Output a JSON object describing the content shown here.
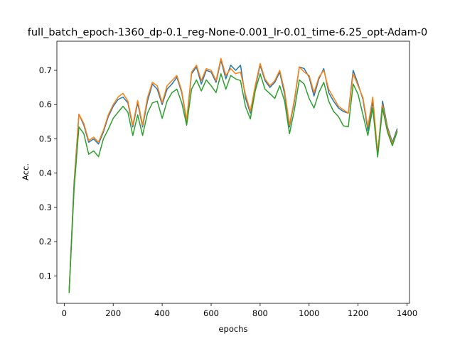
{
  "chart_data": {
    "type": "line",
    "title": "full_batch_epoch-1360_dp-0.1_reg-None-0.001_lr-0.01_time-6.25_opt-Adam-0",
    "xlabel": "epochs",
    "ylabel": "Acc.",
    "xlim": [
      -30,
      1410
    ],
    "ylim": [
      0.02,
      0.785
    ],
    "xticks": [
      0,
      200,
      400,
      600,
      800,
      1000,
      1200,
      1400
    ],
    "yticks": [
      0.1,
      0.2,
      0.3,
      0.4,
      0.5,
      0.6,
      0.7
    ],
    "grid": false,
    "legend": "none",
    "x": [
      20,
      40,
      60,
      80,
      100,
      120,
      140,
      160,
      180,
      200,
      220,
      240,
      260,
      280,
      300,
      320,
      340,
      360,
      380,
      400,
      420,
      440,
      460,
      480,
      500,
      520,
      540,
      560,
      580,
      600,
      620,
      640,
      660,
      680,
      700,
      720,
      740,
      760,
      780,
      800,
      820,
      840,
      860,
      880,
      900,
      920,
      940,
      960,
      980,
      1000,
      1020,
      1040,
      1060,
      1080,
      1100,
      1120,
      1140,
      1160,
      1180,
      1200,
      1220,
      1240,
      1260,
      1280,
      1300,
      1320,
      1340,
      1360
    ],
    "series": [
      {
        "color": "#1f77b4",
        "values": [
          0.055,
          0.37,
          0.572,
          0.54,
          0.49,
          0.5,
          0.485,
          0.52,
          0.565,
          0.595,
          0.615,
          0.622,
          0.605,
          0.535,
          0.605,
          0.535,
          0.61,
          0.66,
          0.645,
          0.6,
          0.645,
          0.66,
          0.68,
          0.635,
          0.55,
          0.69,
          0.71,
          0.66,
          0.7,
          0.695,
          0.665,
          0.73,
          0.675,
          0.715,
          0.7,
          0.715,
          0.62,
          0.575,
          0.65,
          0.715,
          0.67,
          0.65,
          0.665,
          0.695,
          0.63,
          0.535,
          0.61,
          0.71,
          0.705,
          0.68,
          0.625,
          0.675,
          0.705,
          0.635,
          0.61,
          0.59,
          0.58,
          0.575,
          0.7,
          0.66,
          0.615,
          0.525,
          0.61,
          0.455,
          0.61,
          0.535,
          0.49,
          0.53
        ]
      },
      {
        "color": "#ff7f0e",
        "values": [
          0.055,
          0.36,
          0.572,
          0.545,
          0.495,
          0.505,
          0.49,
          0.525,
          0.57,
          0.6,
          0.622,
          0.633,
          0.61,
          0.54,
          0.612,
          0.54,
          0.62,
          0.665,
          0.655,
          0.605,
          0.655,
          0.67,
          0.685,
          0.64,
          0.555,
          0.695,
          0.715,
          0.67,
          0.705,
          0.7,
          0.67,
          0.735,
          0.685,
          0.705,
          0.69,
          0.695,
          0.63,
          0.58,
          0.655,
          0.72,
          0.675,
          0.655,
          0.67,
          0.7,
          0.64,
          0.54,
          0.615,
          0.71,
          0.695,
          0.685,
          0.635,
          0.68,
          0.7,
          0.645,
          0.62,
          0.595,
          0.585,
          0.575,
          0.69,
          0.655,
          0.62,
          0.535,
          0.622,
          0.46,
          0.6,
          0.53,
          0.485,
          0.525
        ]
      },
      {
        "color": "#2ca02c",
        "values": [
          0.05,
          0.35,
          0.535,
          0.515,
          0.455,
          0.465,
          0.448,
          0.5,
          0.528,
          0.56,
          0.578,
          0.595,
          0.578,
          0.51,
          0.57,
          0.51,
          0.575,
          0.605,
          0.61,
          0.56,
          0.61,
          0.635,
          0.645,
          0.605,
          0.54,
          0.645,
          0.672,
          0.64,
          0.672,
          0.655,
          0.635,
          0.69,
          0.645,
          0.685,
          0.675,
          0.67,
          0.595,
          0.558,
          0.64,
          0.69,
          0.645,
          0.632,
          0.618,
          0.655,
          0.61,
          0.515,
          0.585,
          0.672,
          0.66,
          0.618,
          0.59,
          0.635,
          0.665,
          0.61,
          0.58,
          0.565,
          0.538,
          0.535,
          0.66,
          0.63,
          0.57,
          0.51,
          0.59,
          0.447,
          0.59,
          0.52,
          0.48,
          0.522
        ]
      }
    ]
  }
}
